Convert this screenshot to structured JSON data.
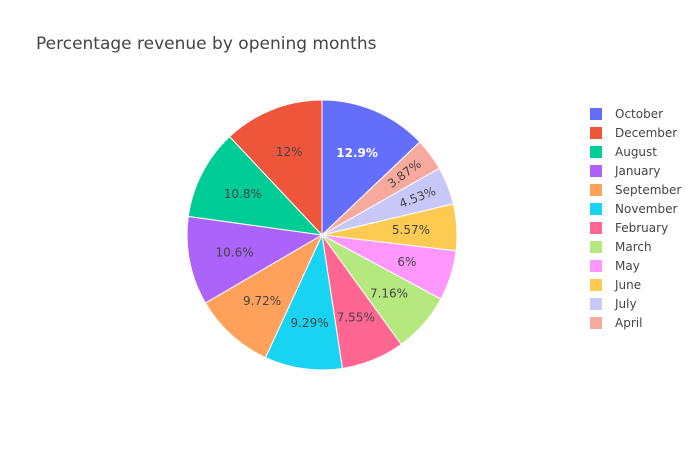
{
  "chart_data": {
    "type": "pie",
    "title": "Percentage revenue by opening months",
    "legend_position": "right",
    "start_angle": "top",
    "direction": "clockwise",
    "slices": [
      {
        "name": "October",
        "value": 12.9,
        "label": "12.9%",
        "color": "#636efa",
        "label_color": "#ffffff"
      },
      {
        "name": "April",
        "value": 3.87,
        "label": "3.87%",
        "color": "#f8a99e",
        "label_color": "#444444"
      },
      {
        "name": "July",
        "value": 4.53,
        "label": "4.53%",
        "color": "#c8c8f8",
        "label_color": "#444444"
      },
      {
        "name": "June",
        "value": 5.57,
        "label": "5.57%",
        "color": "#fecb52",
        "label_color": "#444444"
      },
      {
        "name": "May",
        "value": 6.0,
        "label": "6%",
        "color": "#ff97ff",
        "label_color": "#444444"
      },
      {
        "name": "March",
        "value": 7.16,
        "label": "7.16%",
        "color": "#b6e880",
        "label_color": "#444444"
      },
      {
        "name": "February",
        "value": 7.55,
        "label": "7.55%",
        "color": "#ff6692",
        "label_color": "#444444"
      },
      {
        "name": "November",
        "value": 9.29,
        "label": "9.29%",
        "color": "#19d3f3",
        "label_color": "#444444"
      },
      {
        "name": "September",
        "value": 9.72,
        "label": "9.72%",
        "color": "#ffa15a",
        "label_color": "#444444"
      },
      {
        "name": "January",
        "value": 10.6,
        "label": "10.6%",
        "color": "#ab63fa",
        "label_color": "#444444"
      },
      {
        "name": "August",
        "value": 10.8,
        "label": "10.8%",
        "color": "#00cc96",
        "label_color": "#444444"
      },
      {
        "name": "December",
        "value": 12.0,
        "label": "12%",
        "color": "#ef553b",
        "label_color": "#444444"
      }
    ],
    "legend": [
      "October",
      "December",
      "August",
      "January",
      "September",
      "November",
      "February",
      "March",
      "May",
      "June",
      "July",
      "April"
    ]
  }
}
